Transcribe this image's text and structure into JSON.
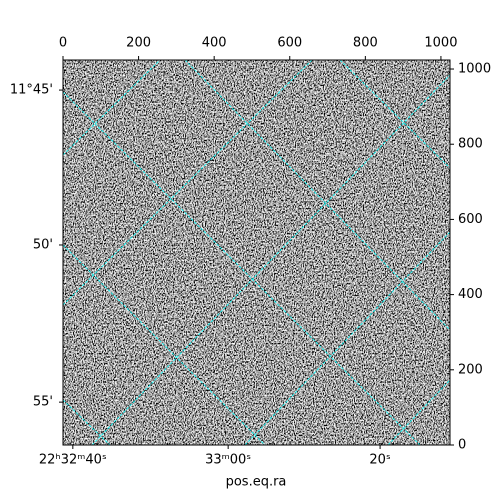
{
  "chart_data": {
    "type": "image",
    "xlabel": "pos.eq.ra",
    "xlim": [
      0,
      1024
    ],
    "ylim": [
      0,
      1024
    ],
    "xticks": [
      0,
      200,
      400,
      600,
      800,
      1000
    ],
    "yticks": [
      0,
      200,
      400,
      600,
      800,
      1000
    ],
    "ra_ticks": [
      {
        "value": 26,
        "label": "22ʰ32ᵐ40ˢ"
      },
      {
        "value": 437,
        "label": "33ᵐ00ˢ"
      },
      {
        "value": 839,
        "label": "20ˢ"
      }
    ],
    "dec_ticks": [
      {
        "value": 944,
        "label": "11°45'"
      },
      {
        "value": 532,
        "label": "50'"
      },
      {
        "value": 114,
        "label": "55'"
      }
    ],
    "grid_color": "#00ffff"
  }
}
